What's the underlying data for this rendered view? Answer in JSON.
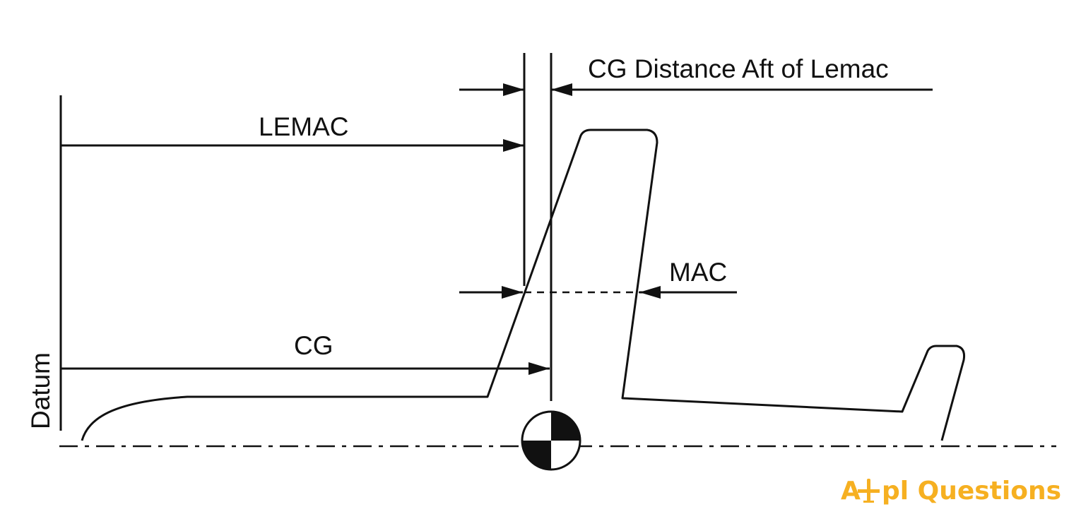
{
  "labels": {
    "cg_distance": "CG Distance Aft of Lemac",
    "lemac": "LEMAC",
    "mac": "MAC",
    "cg": "CG",
    "datum": "Datum"
  },
  "logo": {
    "text_a": "A",
    "text_rest": "pl Questions",
    "icon": "airplane-icon",
    "color": "#f6b021"
  },
  "colors": {
    "line": "#111111",
    "background": "#ffffff"
  }
}
